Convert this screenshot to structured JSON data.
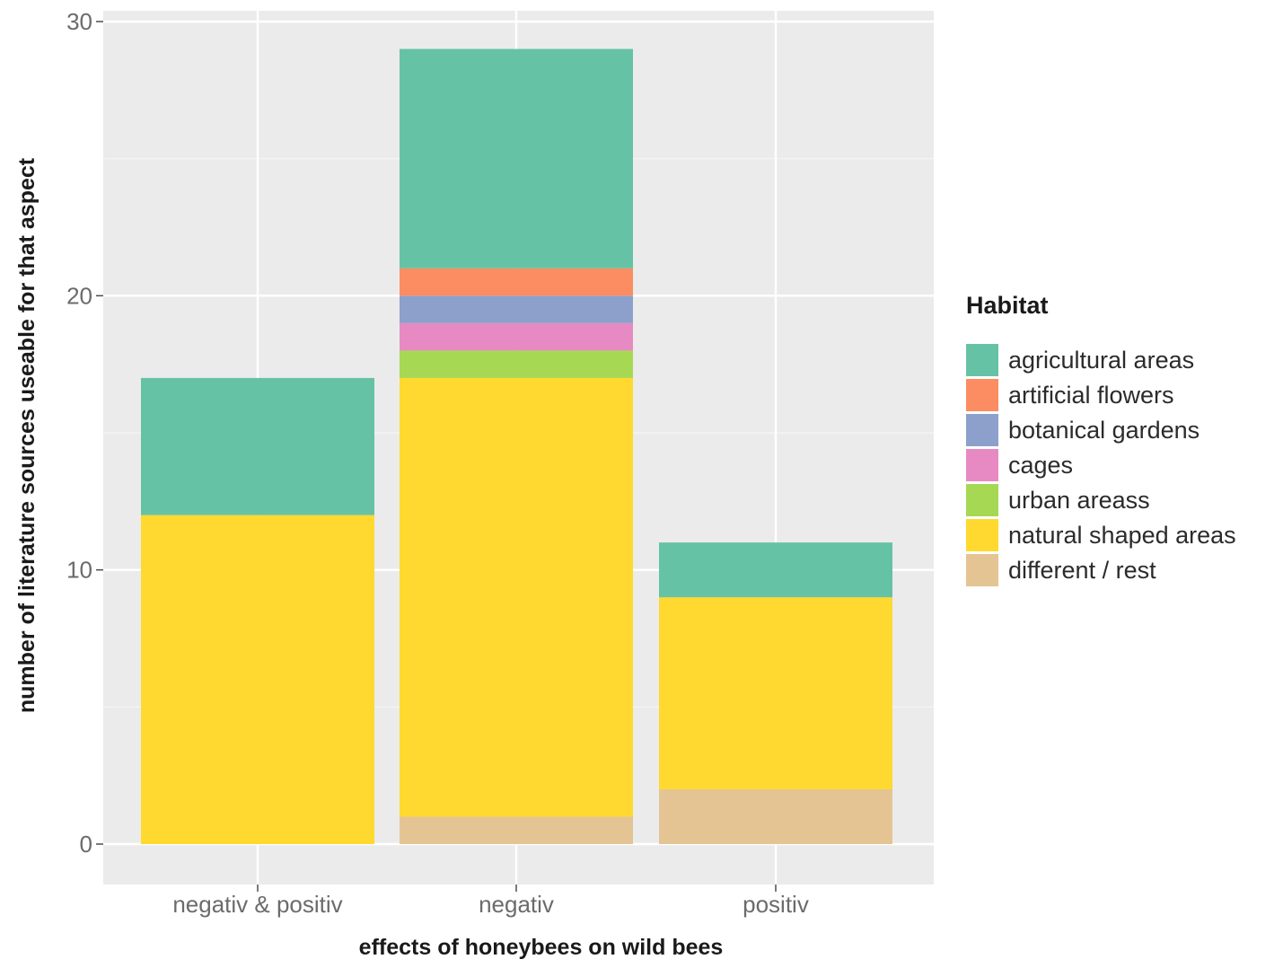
{
  "chart_data": {
    "type": "bar",
    "stacked": true,
    "title": "",
    "xlabel": "effects of honeybees on wild bees",
    "ylabel": "number of literature sources useable for that aspect",
    "categories": [
      "negativ & positiv",
      "negativ",
      "positiv"
    ],
    "ylim": [
      0,
      30
    ],
    "yticks": [
      0,
      10,
      20,
      30
    ],
    "grid": true,
    "panel_background": "#ebebeb",
    "legend_position": "right",
    "legend_title": "Habitat",
    "legend_order": [
      "agricultural areas",
      "artificial flowers",
      "botanical gardens",
      "cages",
      "urban areass",
      "natural shaped areas",
      "different / rest"
    ],
    "series": [
      {
        "name": "different / rest",
        "color": "#e5c494",
        "values": [
          0,
          1,
          2
        ]
      },
      {
        "name": "natural shaped areas",
        "color": "#ffd92f",
        "values": [
          12,
          16,
          7
        ]
      },
      {
        "name": "urban areass",
        "color": "#a6d854",
        "values": [
          0,
          1,
          0
        ]
      },
      {
        "name": "cages",
        "color": "#e78ac3",
        "values": [
          0,
          1,
          0
        ]
      },
      {
        "name": "botanical gardens",
        "color": "#8da0cb",
        "values": [
          0,
          1,
          0
        ]
      },
      {
        "name": "artificial flowers",
        "color": "#fc8d62",
        "values": [
          0,
          1,
          0
        ]
      },
      {
        "name": "agricultural areas",
        "color": "#66c2a5",
        "values": [
          5,
          8,
          2
        ]
      }
    ]
  }
}
